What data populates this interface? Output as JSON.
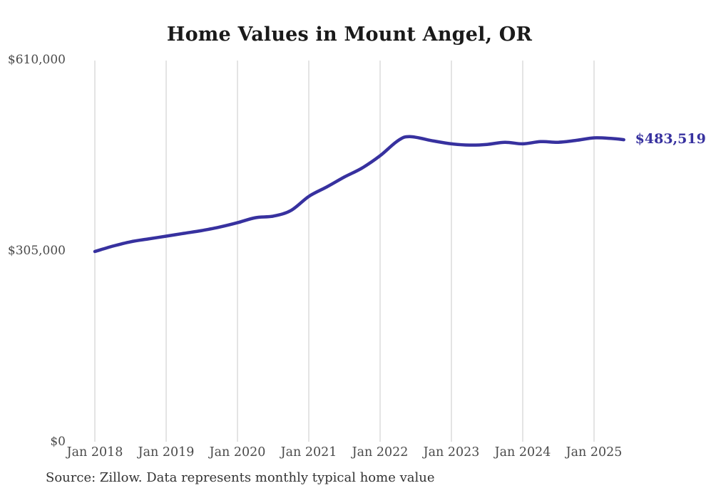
{
  "title": "Home Values in Mount Angel, OR",
  "source_note": "Source: Zillow. Data represents monthly typical home value",
  "colors": {
    "line": "#37319f",
    "grid": "#c9c9c9",
    "axis_text": "#4a4a4a",
    "title_text": "#1a1a1a",
    "annotation_text": "#37319f"
  },
  "chart_data": {
    "type": "line",
    "title": "Home Values in Mount Angel, OR",
    "xlabel": "",
    "ylabel": "",
    "ylim": [
      0,
      610000
    ],
    "y_ticks": [
      610000,
      305000,
      0
    ],
    "y_tick_labels": [
      "$610,000",
      "$305,000",
      "$0"
    ],
    "x_tick_labels": [
      "Jan 2018",
      "Jan 2019",
      "Jan 2020",
      "Jan 2021",
      "Jan 2022",
      "Jan 2023",
      "Jan 2024",
      "Jan 2025"
    ],
    "grid": "vertical-only",
    "legend": "none",
    "end_annotation": {
      "label": "$483,519",
      "value": 483519
    },
    "series": [
      {
        "name": "Monthly typical home value",
        "points": [
          {
            "date": "2018-01",
            "value": 305000
          },
          {
            "date": "2018-04",
            "value": 313500
          },
          {
            "date": "2018-07",
            "value": 320500
          },
          {
            "date": "2018-10",
            "value": 325000
          },
          {
            "date": "2019-01",
            "value": 329500
          },
          {
            "date": "2019-04",
            "value": 334000
          },
          {
            "date": "2019-07",
            "value": 338500
          },
          {
            "date": "2019-10",
            "value": 344000
          },
          {
            "date": "2020-01",
            "value": 351000
          },
          {
            "date": "2020-04",
            "value": 359000
          },
          {
            "date": "2020-07",
            "value": 361500
          },
          {
            "date": "2020-10",
            "value": 370500
          },
          {
            "date": "2021-01",
            "value": 393000
          },
          {
            "date": "2021-04",
            "value": 408000
          },
          {
            "date": "2021-07",
            "value": 424000
          },
          {
            "date": "2021-10",
            "value": 438500
          },
          {
            "date": "2022-01",
            "value": 458000
          },
          {
            "date": "2022-04",
            "value": 482000
          },
          {
            "date": "2022-06",
            "value": 488500
          },
          {
            "date": "2022-10",
            "value": 481500
          },
          {
            "date": "2023-01",
            "value": 477000
          },
          {
            "date": "2023-04",
            "value": 475000
          },
          {
            "date": "2023-07",
            "value": 476000
          },
          {
            "date": "2023-10",
            "value": 479500
          },
          {
            "date": "2024-01",
            "value": 477000
          },
          {
            "date": "2024-04",
            "value": 480500
          },
          {
            "date": "2024-07",
            "value": 479500
          },
          {
            "date": "2024-10",
            "value": 482500
          },
          {
            "date": "2025-01",
            "value": 486500
          },
          {
            "date": "2025-04",
            "value": 485500
          },
          {
            "date": "2025-06",
            "value": 483519
          }
        ]
      }
    ]
  }
}
